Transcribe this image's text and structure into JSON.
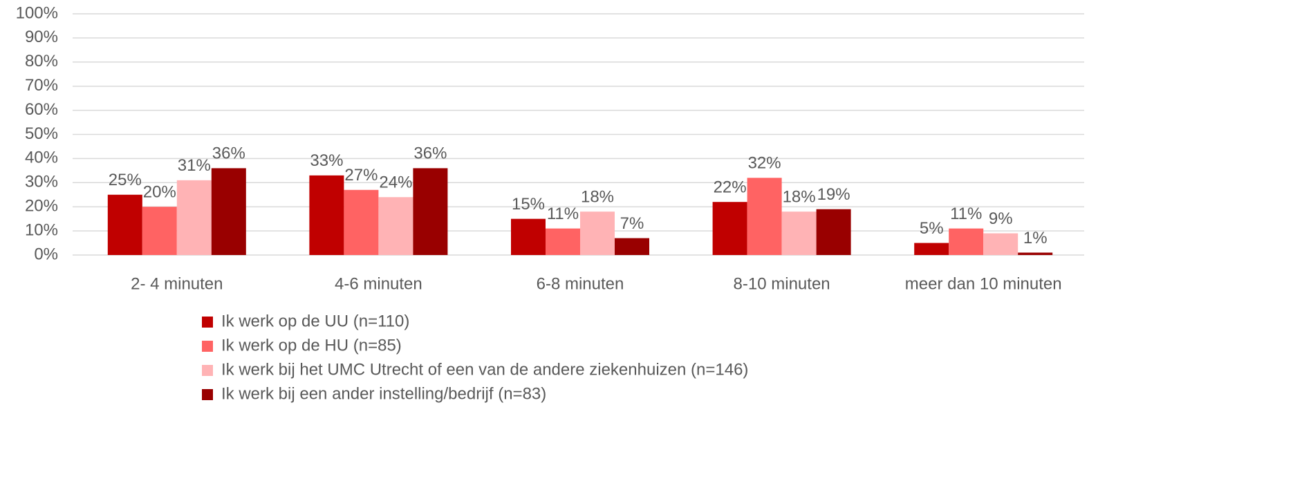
{
  "chart_data": {
    "type": "bar",
    "categories": [
      "2- 4 minuten",
      "4-6 minuten",
      "6-8 minuten",
      "8-10 minuten",
      "meer dan 10 minuten"
    ],
    "series": [
      {
        "name": "Ik werk op de UU (n=110)",
        "color": "#c00000",
        "values": [
          25,
          33,
          15,
          22,
          5
        ],
        "value_labels": [
          "25%",
          "33%",
          "15%",
          "22%",
          "5%"
        ]
      },
      {
        "name": "Ik werk op de HU (n=85)",
        "color": "#ff6363",
        "values": [
          20,
          27,
          11,
          32,
          11
        ],
        "value_labels": [
          "20%",
          "27%",
          "11%",
          "32%",
          "11%"
        ]
      },
      {
        "name": "Ik werk bij het UMC Utrecht of een van de andere ziekenhuizen (n=146)",
        "color": "#ffb3b5",
        "values": [
          31,
          24,
          18,
          18,
          9
        ],
        "value_labels": [
          "31%",
          "24%",
          "18%",
          "18%",
          "9%"
        ]
      },
      {
        "name": "Ik werk bij een ander instelling/bedrijf (n=83)",
        "color": "#990000",
        "values": [
          36,
          36,
          7,
          19,
          1
        ],
        "value_labels": [
          "36%",
          "36%",
          "7%",
          "19%",
          "1%"
        ]
      }
    ],
    "ylim": [
      0,
      100
    ],
    "yticks": [
      {
        "value": 0,
        "label": "0%"
      },
      {
        "value": 10,
        "label": "10%"
      },
      {
        "value": 20,
        "label": "20%"
      },
      {
        "value": 30,
        "label": "30%"
      },
      {
        "value": 40,
        "label": "40%"
      },
      {
        "value": 50,
        "label": "50%"
      },
      {
        "value": 60,
        "label": "60%"
      },
      {
        "value": 70,
        "label": "70%"
      },
      {
        "value": 80,
        "label": "80%"
      },
      {
        "value": 90,
        "label": "90%"
      },
      {
        "value": 100,
        "label": "100%"
      }
    ],
    "grid": true,
    "legend": "bottom"
  }
}
